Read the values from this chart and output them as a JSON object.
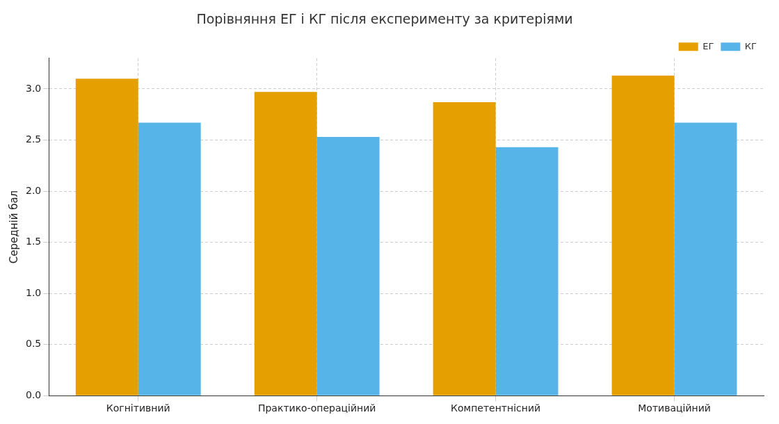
{
  "chart_data": {
    "type": "bar",
    "title": "Порівняння ЕГ і КГ після експерименту за критеріями",
    "ylabel": "Середній бал",
    "categories": [
      "Когнітивний",
      "Практико-операційний",
      "Компетентнісний",
      "Мотиваційний"
    ],
    "series": [
      {
        "name": "ЕГ",
        "color": "#e69f00",
        "values": [
          3.1,
          2.97,
          2.87,
          3.13
        ]
      },
      {
        "name": "КГ",
        "color": "#56b4e9",
        "values": [
          2.67,
          2.53,
          2.43,
          2.67
        ]
      }
    ],
    "ylim": [
      0,
      3.3
    ],
    "yticks": [
      {
        "value": 0,
        "label": "0.0"
      },
      0.5,
      {
        "value": 1,
        "label": "1.0"
      },
      1.5,
      {
        "value": 2,
        "label": "2.0"
      },
      2.5,
      {
        "value": 3,
        "label": "3.0"
      }
    ],
    "grid": true,
    "legend": "top right"
  }
}
